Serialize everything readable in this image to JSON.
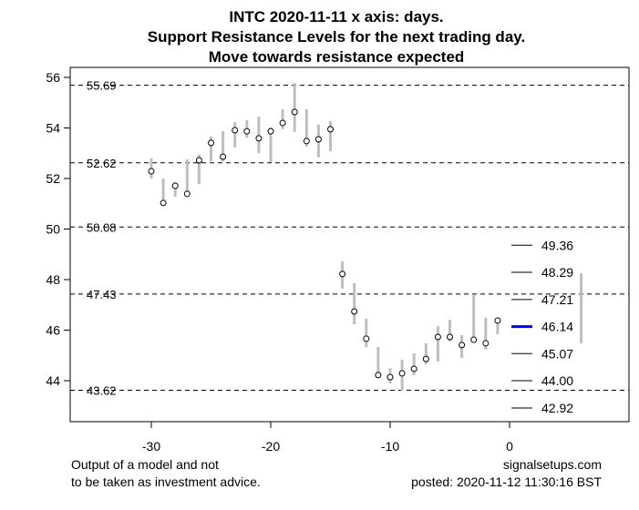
{
  "chart_data": {
    "type": "candlestick-range",
    "title": [
      "INTC 2020-11-11 x axis: days.",
      "Support Resistance Levels for the next trading day.",
      "Move towards resistance expected"
    ],
    "xlabel": "days",
    "xlim": [
      -36,
      8
    ],
    "ylim": [
      42.4,
      56.4
    ],
    "xticks": [
      -30,
      -20,
      -10,
      0
    ],
    "yticks": [
      44,
      46,
      48,
      50,
      52,
      54,
      56
    ],
    "bars": [
      {
        "x": -30,
        "low": 52.0,
        "high": 52.8,
        "close": 52.29
      },
      {
        "x": -29,
        "low": 51.03,
        "high": 52.0,
        "close": 51.03
      },
      {
        "x": -28,
        "low": 51.28,
        "high": 51.86,
        "close": 51.71
      },
      {
        "x": -27,
        "low": 51.28,
        "high": 52.76,
        "close": 51.39
      },
      {
        "x": -26,
        "low": 51.78,
        "high": 52.94,
        "close": 52.72
      },
      {
        "x": -25,
        "low": 52.68,
        "high": 53.66,
        "close": 53.41
      },
      {
        "x": -24,
        "low": 52.68,
        "high": 53.87,
        "close": 52.86
      },
      {
        "x": -23,
        "low": 53.23,
        "high": 54.23,
        "close": 53.91
      },
      {
        "x": -22,
        "low": 53.62,
        "high": 54.31,
        "close": 53.87
      },
      {
        "x": -21,
        "low": 53.0,
        "high": 54.45,
        "close": 53.59
      },
      {
        "x": -20,
        "low": 52.65,
        "high": 54.02,
        "close": 53.87
      },
      {
        "x": -19,
        "low": 53.95,
        "high": 54.74,
        "close": 54.2
      },
      {
        "x": -18,
        "low": 53.84,
        "high": 55.78,
        "close": 54.63
      },
      {
        "x": -17,
        "low": 53.26,
        "high": 54.74,
        "close": 53.48
      },
      {
        "x": -16,
        "low": 52.83,
        "high": 54.13,
        "close": 53.55
      },
      {
        "x": -15,
        "low": 53.08,
        "high": 54.27,
        "close": 53.95
      },
      {
        "x": -14,
        "low": 47.64,
        "high": 48.72,
        "close": 48.22
      },
      {
        "x": -13,
        "low": 46.23,
        "high": 47.86,
        "close": 46.74
      },
      {
        "x": -12,
        "low": 45.33,
        "high": 46.45,
        "close": 45.66
      },
      {
        "x": -11,
        "low": 44.22,
        "high": 45.33,
        "close": 44.22
      },
      {
        "x": -10,
        "low": 43.89,
        "high": 44.5,
        "close": 44.14
      },
      {
        "x": -9,
        "low": 43.6,
        "high": 44.83,
        "close": 44.29
      },
      {
        "x": -8,
        "low": 44.22,
        "high": 45.08,
        "close": 44.47
      },
      {
        "x": -7,
        "low": 44.65,
        "high": 45.48,
        "close": 44.86
      },
      {
        "x": -6,
        "low": 44.76,
        "high": 46.16,
        "close": 45.73
      },
      {
        "x": -5,
        "low": 45.55,
        "high": 46.41,
        "close": 45.73
      },
      {
        "x": -4,
        "low": 44.9,
        "high": 45.8,
        "close": 45.41
      },
      {
        "x": -3,
        "low": 45.62,
        "high": 47.42,
        "close": 45.62
      },
      {
        "x": -2,
        "low": 45.23,
        "high": 46.49,
        "close": 45.48
      },
      {
        "x": -1,
        "low": 45.84,
        "high": 46.45,
        "close": 46.38
      }
    ],
    "forecast_range": {
      "x": 6,
      "low": 45.48,
      "high": 48.25
    },
    "support_resistance": [
      55.69,
      52.62,
      50.08,
      47.43,
      43.62
    ],
    "next_day_levels": [
      {
        "value": 49.36,
        "label": "49.36"
      },
      {
        "value": 48.29,
        "label": "48.29"
      },
      {
        "value": 47.21,
        "label": "47.21"
      },
      {
        "value": 46.14,
        "label": "46.14",
        "highlight": true
      },
      {
        "value": 45.07,
        "label": "45.07"
      },
      {
        "value": 44.0,
        "label": "44.00"
      },
      {
        "value": 42.92,
        "label": "42.92"
      }
    ],
    "colors": {
      "bar": "#bebebe",
      "highlight": "#0000ff",
      "line": "#000000"
    }
  },
  "footer": {
    "disclaimer_1": "Output of a model and not",
    "disclaimer_2": "to be taken as investment advice.",
    "site": "signalsetups.com",
    "posted": "posted: 2020-11-12 11:30:16 BST"
  }
}
